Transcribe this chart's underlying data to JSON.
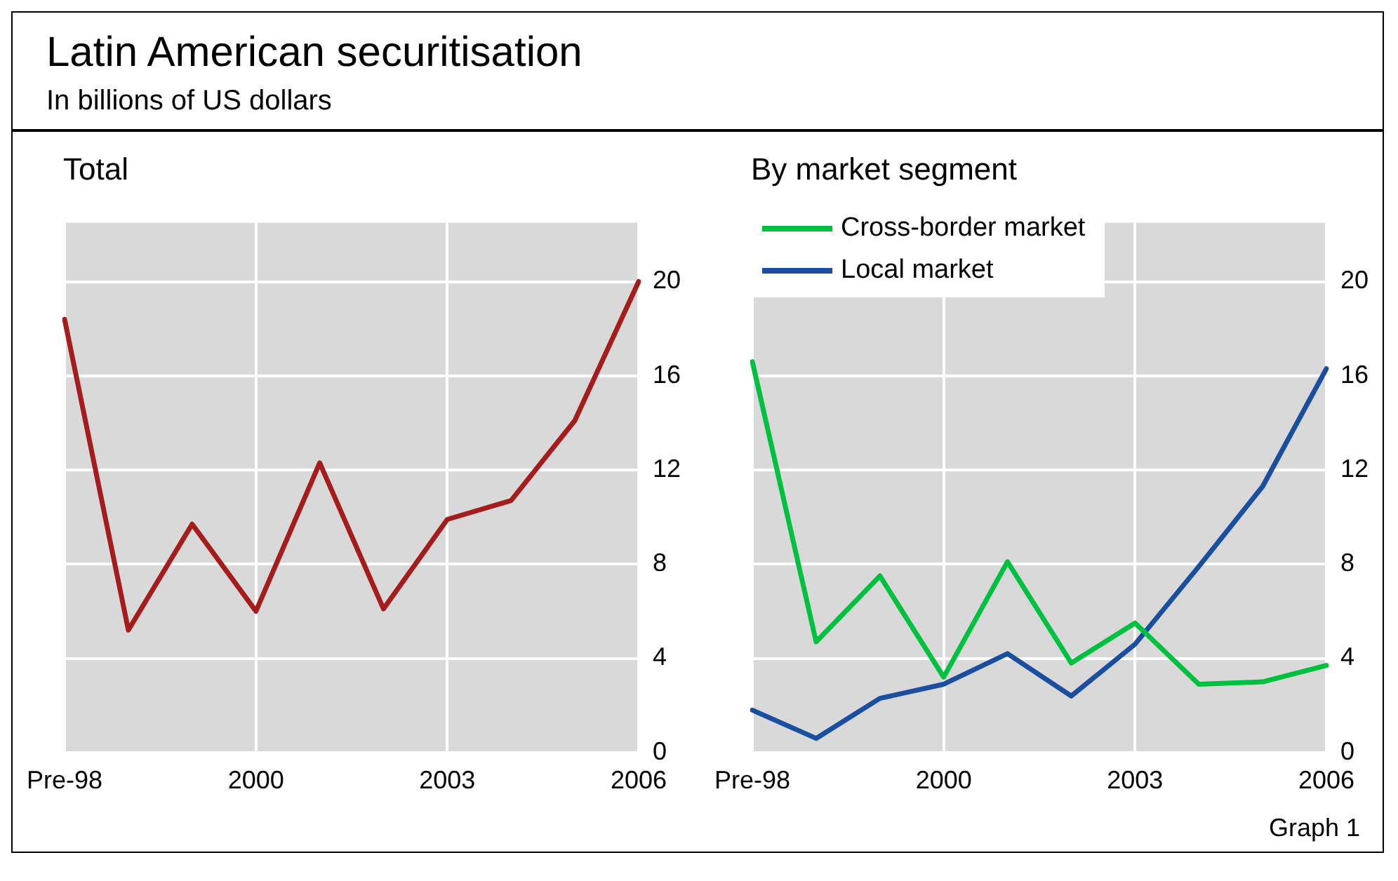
{
  "chart_data": [
    {
      "type": "line",
      "title": "Total",
      "annotations": [
        "Latin American securitisation",
        "In billions of US dollars"
      ],
      "categories": [
        "Pre-98",
        null,
        null,
        "2000",
        null,
        null,
        "2003",
        null,
        null,
        "2006"
      ],
      "series": [
        {
          "color": "#a51c1c",
          "values": [
            18.4,
            5.2,
            9.7,
            6.0,
            12.3,
            6.1,
            9.9,
            10.7,
            14.1,
            20.0
          ]
        }
      ],
      "ylim": [
        0,
        22.5
      ],
      "yticks": [
        0,
        4,
        8,
        12,
        16,
        20
      ],
      "grid": true,
      "marker": "none",
      "line_style": "solid"
    },
    {
      "type": "line",
      "title": "By market segment",
      "annotations": [
        "Graph 1"
      ],
      "categories": [
        "Pre-98",
        null,
        null,
        "2000",
        null,
        null,
        "2003",
        null,
        null,
        "2006"
      ],
      "series": [
        {
          "name": "Cross-border market",
          "color": "#00c040",
          "values": [
            16.6,
            4.7,
            7.5,
            3.2,
            8.1,
            3.8,
            5.5,
            2.9,
            3.0,
            3.7
          ]
        },
        {
          "name": "Local market",
          "color": "#1a4fa0",
          "values": [
            1.8,
            0.6,
            2.3,
            2.9,
            4.2,
            2.4,
            4.6,
            7.9,
            11.3,
            16.3
          ]
        }
      ],
      "ylim": [
        0,
        22.5
      ],
      "yticks": [
        0,
        4,
        8,
        12,
        16,
        20
      ],
      "grid": true,
      "legend": "top left",
      "marker": "none",
      "line_style": "solid"
    }
  ]
}
